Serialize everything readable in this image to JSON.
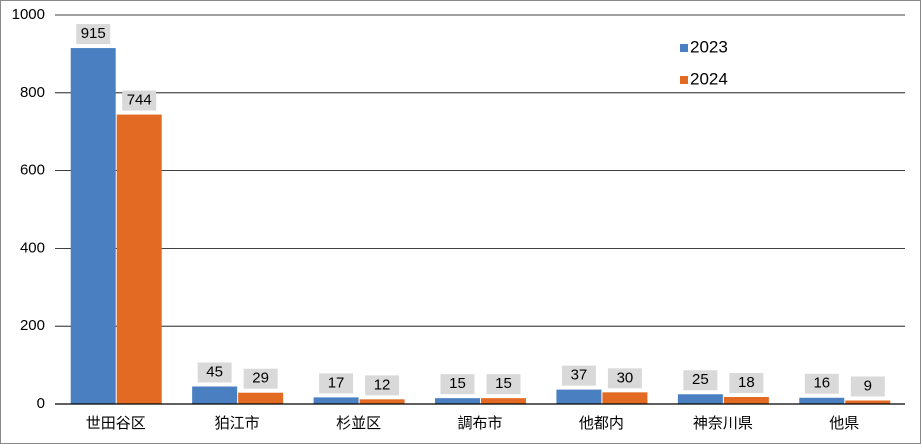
{
  "chart_data": {
    "type": "bar",
    "categories": [
      "世田谷区",
      "狛江市",
      "杉並区",
      "調布市",
      "他都内",
      "神奈川県",
      "他県"
    ],
    "series": [
      {
        "name": "2023",
        "color": "#4a7fc1",
        "values": [
          915,
          45,
          17,
          15,
          37,
          25,
          16
        ]
      },
      {
        "name": "2024",
        "color": "#e26a22",
        "values": [
          744,
          29,
          12,
          15,
          30,
          18,
          9
        ]
      }
    ],
    "ylim": [
      0,
      1000
    ],
    "yticks": [
      0,
      200,
      400,
      600,
      800,
      1000
    ],
    "grid": true,
    "legend": "top-right"
  }
}
